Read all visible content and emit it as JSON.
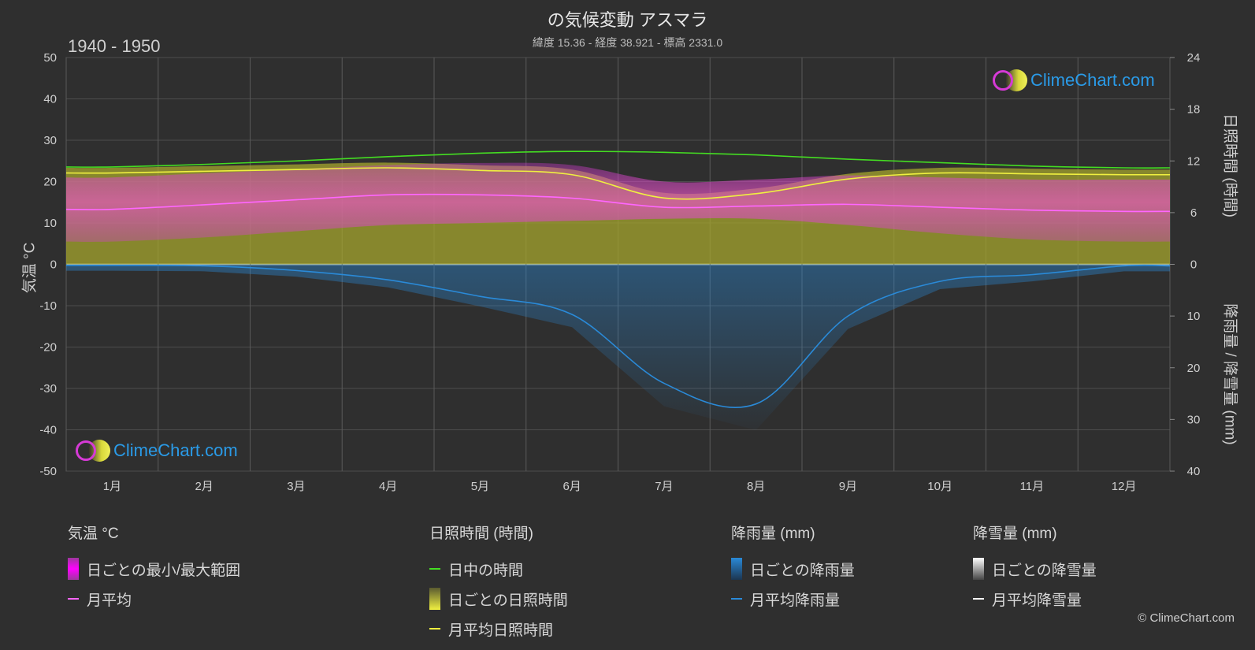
{
  "header": {
    "title": "の気候変動 アスマラ",
    "subtitle": "緯度 15.36 - 経度 38.921 - 標高 2331.0",
    "period": "1940 - 1950"
  },
  "axes": {
    "left_title": "気温 °C",
    "right_top_title": "日照時間 (時間)",
    "right_bottom_title": "降雨量 / 降雪量 (mm)",
    "temp_ticks": [
      "50",
      "40",
      "30",
      "20",
      "10",
      "0",
      "-10",
      "-20",
      "-30",
      "-40",
      "-50"
    ],
    "sun_ticks": [
      "24",
      "18",
      "12",
      "6",
      "0"
    ],
    "rain_ticks": [
      "0",
      "10",
      "20",
      "30",
      "40"
    ]
  },
  "logo_text": "ClimeChart.com",
  "copyright": "© ClimeChart.com",
  "colors": {
    "background": "#2f2f2f",
    "temp_range": "#d63ad6",
    "temp_avg": "#ff66ff",
    "daylight": "#44dd22",
    "sunshine_fill": "#b8b82e",
    "sunshine_avg": "#f0f040",
    "rain": "#2a8ad8",
    "snow": "#ffffff"
  },
  "legend": {
    "temp": {
      "header": "気温 °C",
      "range": "日ごとの最小/最大範囲",
      "avg": "月平均"
    },
    "sun": {
      "header": "日照時間 (時間)",
      "daylight": "日中の時間",
      "daily": "日ごとの日照時間",
      "avg": "月平均日照時間"
    },
    "rain": {
      "header": "降雨量 (mm)",
      "daily": "日ごとの降雨量",
      "avg": "月平均降雨量"
    },
    "snow": {
      "header": "降雪量 (mm)",
      "daily": "日ごとの降雪量",
      "avg": "月平均降雪量"
    }
  },
  "chart_data": {
    "type": "line",
    "categories": [
      "1月",
      "2月",
      "3月",
      "4月",
      "5月",
      "6月",
      "7月",
      "8月",
      "9月",
      "10月",
      "11月",
      "12月"
    ],
    "temp_ylim": [
      -50,
      50
    ],
    "sunshine_ylim": [
      0,
      24
    ],
    "precip_ylim": [
      0,
      40
    ],
    "series": [
      {
        "name": "日中の時間",
        "axis": "sunshine",
        "values": [
          11.3,
          11.6,
          12.0,
          12.5,
          12.9,
          13.1,
          13.0,
          12.7,
          12.2,
          11.8,
          11.4,
          11.2
        ]
      },
      {
        "name": "月平均日照時間",
        "axis": "sunshine",
        "values": [
          10.6,
          10.8,
          11.0,
          11.2,
          10.9,
          10.4,
          7.7,
          8.2,
          9.9,
          10.6,
          10.5,
          10.4
        ]
      },
      {
        "name": "月平均",
        "axis": "temp",
        "values": [
          13.3,
          14.4,
          15.6,
          16.8,
          16.8,
          16.0,
          13.8,
          14.1,
          14.5,
          13.8,
          13.1,
          12.8
        ]
      },
      {
        "name": "日ごとの最小/最大範囲 (min)",
        "axis": "temp",
        "values": [
          5.5,
          6.5,
          8.0,
          9.5,
          10.0,
          10.5,
          11.0,
          11.0,
          9.5,
          7.5,
          6.0,
          5.5
        ]
      },
      {
        "name": "日ごとの最小/最大範囲 (max)",
        "axis": "temp",
        "values": [
          21.0,
          22.0,
          23.0,
          24.0,
          24.5,
          24.0,
          20.0,
          20.5,
          21.5,
          21.0,
          20.5,
          20.5
        ]
      },
      {
        "name": "月平均降雨量",
        "axis": "precip",
        "values": [
          0.2,
          0.3,
          1.2,
          3.0,
          6.2,
          9.7,
          23.0,
          27.0,
          10.0,
          3.3,
          2.0,
          0.3
        ]
      },
      {
        "name": "月平均降雪量",
        "axis": "precip",
        "values": [
          0,
          0,
          0,
          0,
          0,
          0,
          0,
          0,
          0,
          0,
          0,
          0
        ]
      }
    ],
    "grid": true
  }
}
